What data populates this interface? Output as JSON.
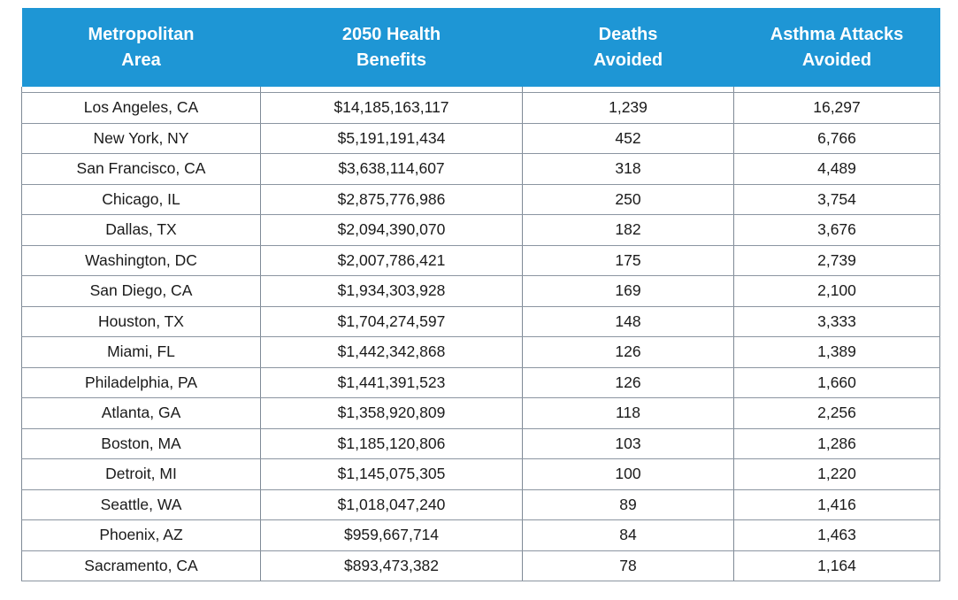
{
  "table": {
    "headers": [
      [
        "Metropolitan",
        "Area"
      ],
      [
        "2050 Health",
        "Benefits"
      ],
      [
        "Deaths",
        "Avoided"
      ],
      [
        "Asthma Attacks",
        "Avoided"
      ]
    ],
    "rows": [
      [
        "Los Angeles, CA",
        "$14,185,163,117",
        "1,239",
        "16,297"
      ],
      [
        "New York, NY",
        "$5,191,191,434",
        "452",
        "6,766"
      ],
      [
        "San Francisco, CA",
        "$3,638,114,607",
        "318",
        "4,489"
      ],
      [
        "Chicago, IL",
        "$2,875,776,986",
        "250",
        "3,754"
      ],
      [
        "Dallas, TX",
        "$2,094,390,070",
        "182",
        "3,676"
      ],
      [
        "Washington, DC",
        "$2,007,786,421",
        "175",
        "2,739"
      ],
      [
        "San Diego, CA",
        "$1,934,303,928",
        "169",
        "2,100"
      ],
      [
        "Houston, TX",
        "$1,704,274,597",
        "148",
        "3,333"
      ],
      [
        "Miami, FL",
        "$1,442,342,868",
        "126",
        "1,389"
      ],
      [
        "Philadelphia, PA",
        "$1,441,391,523",
        "126",
        "1,660"
      ],
      [
        "Atlanta, GA",
        "$1,358,920,809",
        "118",
        "2,256"
      ],
      [
        "Boston, MA",
        "$1,185,120,806",
        "103",
        "1,286"
      ],
      [
        "Detroit, MI",
        "$1,145,075,305",
        "100",
        "1,220"
      ],
      [
        "Seattle, WA",
        "$1,018,047,240",
        "89",
        "1,416"
      ],
      [
        "Phoenix, AZ",
        "$959,667,714",
        "84",
        "1,463"
      ],
      [
        "Sacramento, CA",
        "$893,473,382",
        "78",
        "1,164"
      ]
    ]
  },
  "colors": {
    "header_background": "#1e96d5",
    "header_text": "#ffffff",
    "grid_lines": "#7f8a96",
    "body_text": "#1a1a1a"
  }
}
